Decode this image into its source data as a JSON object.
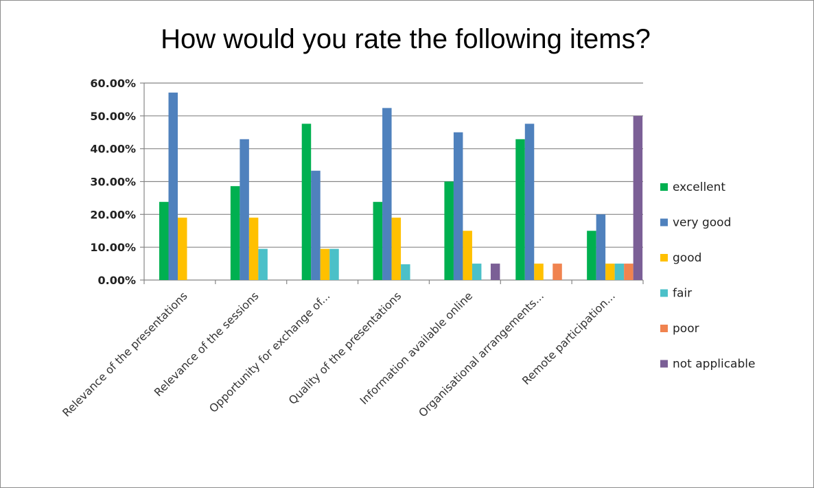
{
  "chart_data": {
    "type": "bar",
    "title": "How would you rate the following items?",
    "xlabel": "",
    "ylabel": "",
    "ylim": [
      0,
      0.6
    ],
    "y_tick_values": [
      0,
      0.1,
      0.2,
      0.3,
      0.4,
      0.5,
      0.6
    ],
    "y_tick_labels": [
      "0.00%",
      "10.00%",
      "20.00%",
      "30.00%",
      "40.00%",
      "50.00%",
      "60.00%"
    ],
    "grid": true,
    "legend_position": "right",
    "categories": [
      "Relevance of the presentations",
      "Relevance of the sessions",
      "Opportunity for exchange of...",
      "Quality of the presentations",
      "Information available online",
      "Organisational arrangements...",
      "Remote participation..."
    ],
    "series": [
      {
        "name": "excellent",
        "color": "#00b050",
        "values": [
          0.238,
          0.286,
          0.476,
          0.238,
          0.3,
          0.429,
          0.15
        ]
      },
      {
        "name": "very good",
        "color": "#4f81bd",
        "values": [
          0.571,
          0.429,
          0.333,
          0.524,
          0.45,
          0.476,
          0.2
        ]
      },
      {
        "name": "good",
        "color": "#ffc000",
        "values": [
          0.19,
          0.19,
          0.095,
          0.19,
          0.15,
          0.05,
          0.05
        ]
      },
      {
        "name": "fair",
        "color": "#4bc0c8",
        "values": [
          0,
          0.095,
          0.095,
          0.048,
          0.05,
          0,
          0.05
        ]
      },
      {
        "name": "poor",
        "color": "#f0834f",
        "values": [
          0,
          0,
          0,
          0,
          0,
          0.05,
          0.05
        ]
      },
      {
        "name": "not applicable",
        "color": "#7b5f96",
        "values": [
          0,
          0,
          0,
          0,
          0.05,
          0,
          0.5
        ]
      }
    ]
  }
}
